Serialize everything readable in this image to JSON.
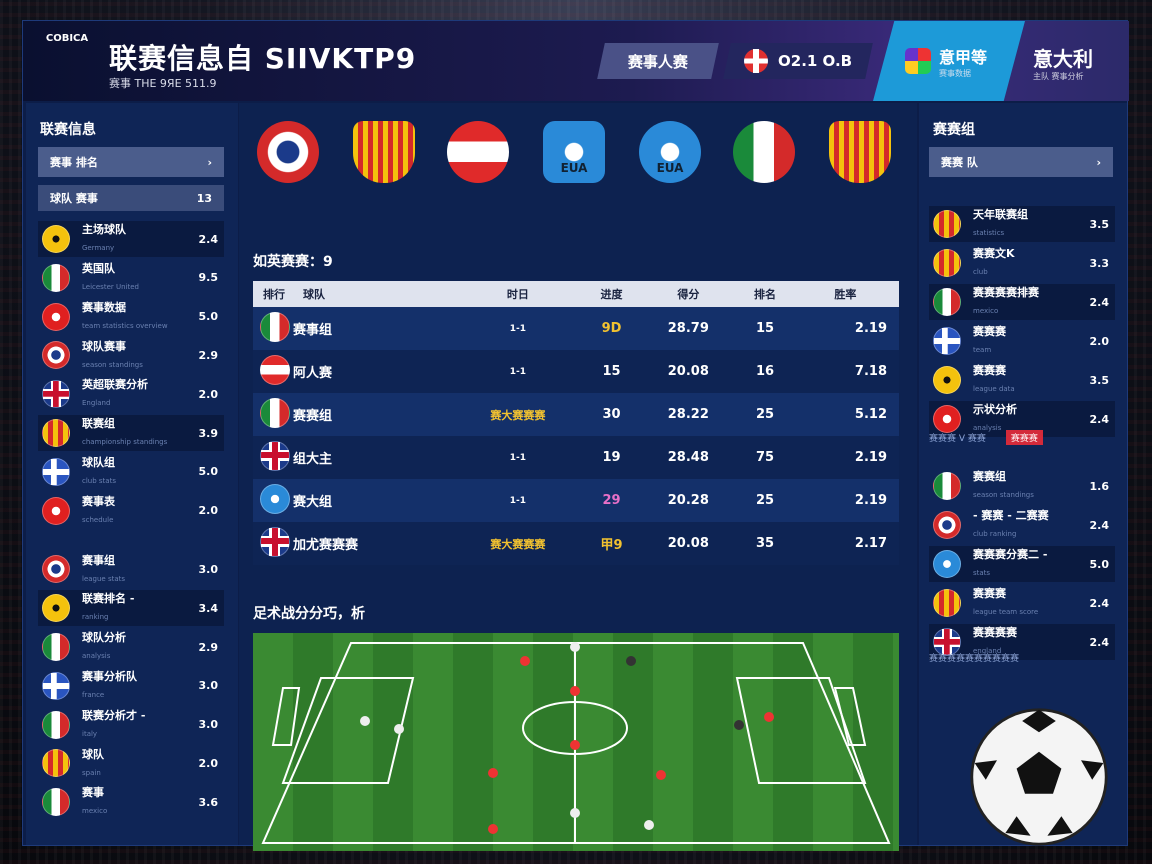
{
  "header": {
    "logo_text": "COBICA",
    "title": "联赛信息自 SIIVKTP9",
    "subtitle": "赛事 THE 9ЯE 511.9",
    "button1": "赛事人赛",
    "score": "O2.1 O.B",
    "button3": "意甲等",
    "button3_sub": "赛事数据",
    "right_title": "意大利",
    "right_sub": "主队 赛事分析"
  },
  "left": {
    "title": "联赛信息",
    "filter1": "赛事  排名",
    "filter1_icon": "chevron-right-icon",
    "filter2": "球队  赛事",
    "filter2_count": "13",
    "items": [
      {
        "name": "主场球队",
        "sub": "Germany",
        "value": "2.4",
        "flag": "yellow",
        "hl": true
      },
      {
        "name": "英国队",
        "sub": "Leicester United",
        "value": "9.5",
        "flag": "mexico"
      },
      {
        "name": "赛事数据",
        "sub": "team statistics overview",
        "value": "5.0",
        "flag": "red"
      },
      {
        "name": "球队赛事",
        "sub": "season standings",
        "value": "2.9",
        "flag": "star"
      },
      {
        "name": "英超联赛分析",
        "sub": "England",
        "value": "2.0",
        "flag": "uk"
      },
      {
        "name": "联赛组",
        "sub": "championship standings",
        "value": "3.9",
        "flag": "shield",
        "hl": true
      },
      {
        "name": "球队组",
        "sub": "club stats",
        "value": "5.0",
        "flag": "cross"
      },
      {
        "name": "赛事表",
        "sub": "schedule",
        "value": "2.0",
        "flag": "red"
      },
      {
        "name": "赛事组",
        "sub": "league stats",
        "value": "3.0",
        "flag": "star"
      },
      {
        "name": "联赛排名 -",
        "sub": "ranking",
        "value": "3.4",
        "flag": "yellow",
        "hl": true
      },
      {
        "name": "球队分析",
        "sub": "analysis",
        "value": "2.9",
        "flag": "mexico"
      },
      {
        "name": "赛事分析队",
        "sub": "france",
        "value": "3.0",
        "flag": "cross"
      },
      {
        "name": "联赛分析才 -",
        "sub": "italy",
        "value": "3.0",
        "flag": "mexico"
      },
      {
        "name": "球队",
        "sub": "spain",
        "value": "2.0",
        "flag": "shield"
      },
      {
        "name": "赛事",
        "sub": "mexico",
        "value": "3.6",
        "flag": "mexico"
      }
    ]
  },
  "center": {
    "badges": [
      {
        "flag": "star"
      },
      {
        "flag": "shield"
      },
      {
        "flag": "austria"
      },
      {
        "flag": "blue",
        "text": "EUA"
      },
      {
        "flag": "blue",
        "text": "EUA"
      },
      {
        "flag": "mexico"
      },
      {
        "flag": "shield"
      }
    ],
    "table_title": "如英赛赛：9",
    "columns": [
      "排行",
      "球队",
      "时日",
      "进度",
      "得分",
      "排名",
      "胜率"
    ],
    "rows": [
      {
        "flag": "mexico",
        "team": "赛事组",
        "time": "1-1",
        "c3": "9D",
        "c3_color": "#f2c230",
        "c4": "28.79",
        "c5": "15",
        "c6": "2.19"
      },
      {
        "flag": "austria",
        "team": "阿人赛",
        "time": "1-1",
        "c3": "15",
        "c4": "20.08",
        "c5": "16",
        "c6": "7.18"
      },
      {
        "flag": "mexico",
        "team": "赛赛组",
        "time": "赛大赛赛赛",
        "hot": true,
        "c3": "30",
        "c4": "28.22",
        "c5": "25",
        "c6": "5.12"
      },
      {
        "flag": "uk",
        "team": "组大主",
        "time": "1-1",
        "c3": "19",
        "c4": "28.48",
        "c5": "75",
        "c6": "2.19"
      },
      {
        "flag": "blue",
        "team": "赛大组",
        "time": "1-1",
        "c3": "29",
        "c3_color": "#e870c8",
        "c4": "20.28",
        "c5": "25",
        "c6": "2.19"
      },
      {
        "flag": "uk",
        "team": "加尤赛赛赛",
        "time": "赛大赛赛赛",
        "hot": true,
        "c3": "甲9",
        "c3_color": "#f2c230",
        "c4": "20.08",
        "c5": "35",
        "c6": "2.17"
      }
    ],
    "pitch_title": "足术战分分巧，析"
  },
  "right": {
    "title": "赛赛组",
    "filter": "赛赛  队",
    "filter_icon": "chevron-right-icon",
    "items": [
      {
        "name": "天年联赛组",
        "sub": "statistics",
        "value": "3.5",
        "flag": "shield",
        "hl": true
      },
      {
        "name": "赛赛文K",
        "sub": "club",
        "value": "3.3",
        "flag": "shield"
      },
      {
        "name": "赛赛赛赛排赛",
        "sub": "mexico",
        "value": "2.4",
        "flag": "mexico",
        "hl": true
      },
      {
        "name": "赛赛赛",
        "sub": "team",
        "value": "2.0",
        "flag": "cross"
      },
      {
        "name": "赛赛赛",
        "sub": "league data",
        "value": "3.5",
        "flag": "yellow"
      },
      {
        "name": "示状分析",
        "sub": "analysis",
        "value": "2.4",
        "flag": "red",
        "hl": true
      }
    ],
    "separator": "赛赛赛 V 赛赛",
    "separator_tag": "赛赛赛",
    "items2": [
      {
        "name": "赛赛组",
        "sub": "season standings",
        "value": "1.6",
        "flag": "mexico"
      },
      {
        "name": "- 赛赛 - 二赛赛",
        "sub": "club ranking",
        "value": "2.4",
        "flag": "star"
      },
      {
        "name": "赛赛赛分赛二 -",
        "sub": "stats",
        "value": "5.0",
        "flag": "blue",
        "hl": true
      },
      {
        "name": "赛赛赛",
        "sub": "league team score",
        "value": "2.4",
        "flag": "shield"
      },
      {
        "name": "赛赛赛赛",
        "sub": "england",
        "value": "2.4",
        "flag": "uk",
        "hl": true
      }
    ],
    "footer": "赛赛赛赛赛赛赛赛赛赛"
  }
}
